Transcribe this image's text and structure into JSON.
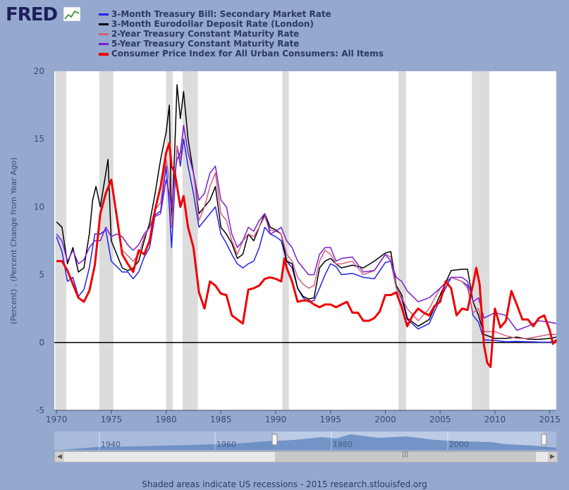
{
  "logo": {
    "text": "FRED"
  },
  "footer": {
    "text": "Shaded areas indicate US recessions - 2015 research.stlouisfed.org"
  },
  "colors": {
    "tbill": "#2222ee",
    "eurodollar": "#000000",
    "treas2": "#d06080",
    "treas5": "#7a1fd0",
    "cpi": "#ee0000",
    "recession": "#dcdcdc",
    "plotbg": "#ffffff"
  },
  "chart_data": {
    "type": "line",
    "title": "",
    "xlabel": "",
    "ylabel": "(Percent) , (Percent Change from Year Ago)",
    "xlim": [
      1969.8,
      2015.6
    ],
    "ylim": [
      -5,
      20
    ],
    "yticks": [
      -5,
      0,
      5,
      10,
      15,
      20
    ],
    "xticks": [
      1970,
      1975,
      1980,
      1985,
      1990,
      1995,
      2000,
      2005,
      2010,
      2015
    ],
    "recessions": [
      [
        1969.9,
        1970.9
      ],
      [
        1973.9,
        1975.2
      ],
      [
        1980.0,
        1980.6
      ],
      [
        1981.5,
        1982.9
      ],
      [
        1990.6,
        1991.2
      ],
      [
        2001.2,
        2001.9
      ],
      [
        2007.9,
        2009.5
      ]
    ],
    "navigator_labels": [
      "1940",
      "1960",
      "1980",
      "2000"
    ],
    "series": [
      {
        "name": "3-Month Treasury Bill: Secondary Market Rate",
        "key": "tbill",
        "x": [
          1970,
          1970.5,
          1971,
          1971.5,
          1972,
          1972.5,
          1973,
          1973.5,
          1974,
          1974.5,
          1975,
          1975.5,
          1976,
          1976.5,
          1977,
          1977.5,
          1978,
          1978.5,
          1979,
          1979.5,
          1980,
          1980.3,
          1980.5,
          1980.8,
          1981,
          1981.3,
          1981.6,
          1982,
          1982.5,
          1983,
          1983.5,
          1984,
          1984.5,
          1985,
          1985.5,
          1986,
          1986.5,
          1987,
          1987.5,
          1988,
          1988.5,
          1989,
          1989.5,
          1990,
          1990.5,
          1991,
          1991.5,
          1992,
          1992.5,
          1993,
          1993.5,
          1994,
          1994.5,
          1995,
          1995.5,
          1996,
          1997,
          1998,
          1999,
          2000,
          2000.5,
          2001,
          2001.5,
          2002,
          2003,
          2004,
          2005,
          2006,
          2007,
          2007.5,
          2008,
          2008.5,
          2009,
          2010,
          2011,
          2012,
          2013,
          2014,
          2015,
          2015.6
        ],
        "y": [
          7.8,
          6.7,
          4.5,
          4.8,
          3.4,
          3.9,
          5.5,
          8.0,
          8.0,
          8.3,
          6.0,
          5.6,
          5.2,
          5.2,
          4.7,
          5.2,
          6.3,
          7.0,
          9.4,
          9.7,
          13.0,
          10.0,
          7.0,
          11.5,
          14.5,
          13.0,
          15.0,
          13.0,
          11.0,
          8.5,
          9.0,
          9.5,
          10.0,
          8.0,
          7.3,
          6.5,
          5.8,
          5.5,
          5.8,
          6.0,
          7.0,
          8.5,
          8.0,
          7.8,
          7.5,
          6.0,
          5.5,
          4.0,
          3.3,
          3.0,
          3.1,
          4.0,
          5.0,
          5.8,
          5.6,
          5.0,
          5.1,
          4.8,
          4.7,
          5.9,
          6.0,
          4.0,
          3.2,
          1.7,
          1.0,
          1.4,
          3.2,
          4.8,
          4.5,
          4.2,
          2.0,
          1.5,
          0.2,
          0.15,
          0.05,
          0.08,
          0.05,
          0.03,
          0.02,
          0.1
        ]
      },
      {
        "name": "3-Month Eurodollar Deposit Rate (London)",
        "key": "eurodollar",
        "x": [
          1970,
          1970.5,
          1971,
          1971.5,
          1972,
          1972.5,
          1973,
          1973.3,
          1973.6,
          1974,
          1974.5,
          1974.7,
          1975,
          1975.5,
          1976,
          1976.5,
          1977,
          1977.5,
          1978,
          1978.5,
          1979,
          1979.5,
          1980,
          1980.3,
          1980.5,
          1980.8,
          1981,
          1981.3,
          1981.6,
          1982,
          1982.5,
          1983,
          1983.5,
          1984,
          1984.5,
          1985,
          1985.5,
          1986,
          1986.5,
          1987,
          1987.5,
          1988,
          1988.5,
          1989,
          1989.5,
          1990,
          1990.5,
          1991,
          1991.5,
          1992,
          1992.5,
          1993,
          1993.5,
          1994,
          1994.5,
          1995,
          1995.5,
          1996,
          1997,
          1998,
          1999,
          2000,
          2000.5,
          2001,
          2001.5,
          2002,
          2003,
          2004,
          2005,
          2006,
          2007,
          2007.5,
          2008,
          2008.5,
          2009,
          2010,
          2011,
          2012,
          2013,
          2014,
          2015,
          2015.6
        ],
        "y": [
          8.9,
          8.5,
          5.8,
          7.0,
          5.2,
          5.5,
          8.0,
          10.5,
          11.5,
          10.0,
          12.5,
          13.5,
          7.5,
          6.5,
          5.5,
          5.3,
          5.5,
          6.0,
          7.5,
          8.8,
          11.0,
          13.5,
          15.5,
          17.5,
          8.5,
          14.5,
          19.0,
          16.5,
          18.5,
          15.0,
          12.5,
          9.5,
          10.0,
          10.5,
          11.5,
          8.5,
          8.0,
          7.3,
          6.2,
          6.5,
          8.0,
          7.5,
          8.5,
          9.5,
          8.5,
          8.3,
          8.0,
          6.0,
          5.8,
          4.0,
          3.4,
          3.2,
          3.3,
          5.5,
          6.0,
          6.2,
          5.8,
          5.5,
          5.7,
          5.5,
          6.0,
          6.6,
          6.7,
          4.2,
          3.5,
          1.8,
          1.2,
          1.7,
          3.5,
          5.3,
          5.4,
          5.4,
          3.0,
          2.0,
          0.6,
          0.3,
          0.3,
          0.4,
          0.25,
          0.23,
          0.3,
          0.4
        ]
      },
      {
        "name": "2-Year Treasury Constant Maturity Rate",
        "key": "treas2",
        "x": [
          1976,
          1976.5,
          1977,
          1977.5,
          1978,
          1978.5,
          1979,
          1979.5,
          1980,
          1980.3,
          1980.5,
          1980.8,
          1981,
          1981.3,
          1981.6,
          1982,
          1982.5,
          1983,
          1983.5,
          1984,
          1984.5,
          1985,
          1985.5,
          1986,
          1986.5,
          1987,
          1987.5,
          1988,
          1988.5,
          1989,
          1989.5,
          1990,
          1990.5,
          1991,
          1991.5,
          1992,
          1992.5,
          1993,
          1993.5,
          1994,
          1994.5,
          1995,
          1995.5,
          1996,
          1997,
          1998,
          1999,
          2000,
          2000.5,
          2001,
          2001.5,
          2002,
          2003,
          2004,
          2005,
          2006,
          2007,
          2007.5,
          2008,
          2008.5,
          2009,
          2010,
          2011,
          2012,
          2013,
          2014,
          2015,
          2015.6
        ],
        "y": [
          6.8,
          6.4,
          6.0,
          6.5,
          7.8,
          8.5,
          9.8,
          10.3,
          13.5,
          12.0,
          8.5,
          12.0,
          14.5,
          13.5,
          16.0,
          14.0,
          12.5,
          9.0,
          10.0,
          11.5,
          12.5,
          9.5,
          9.0,
          7.5,
          6.5,
          7.5,
          8.0,
          7.8,
          8.5,
          9.3,
          8.3,
          8.2,
          8.0,
          6.5,
          6.0,
          4.8,
          4.3,
          4.0,
          4.2,
          6.0,
          6.8,
          6.5,
          5.8,
          5.8,
          6.0,
          5.0,
          5.3,
          6.5,
          6.3,
          4.0,
          3.3,
          2.5,
          1.6,
          2.5,
          4.0,
          4.8,
          4.5,
          4.0,
          2.2,
          2.5,
          0.8,
          0.8,
          0.5,
          0.3,
          0.3,
          0.45,
          0.6,
          0.6
        ]
      },
      {
        "name": "5-Year Treasury Constant Maturity Rate",
        "key": "treas5",
        "x": [
          1970,
          1970.5,
          1971,
          1971.5,
          1972,
          1972.5,
          1973,
          1973.5,
          1974,
          1974.5,
          1975,
          1975.5,
          1976,
          1976.5,
          1977,
          1977.5,
          1978,
          1978.5,
          1979,
          1979.5,
          1980,
          1980.3,
          1980.5,
          1980.8,
          1981,
          1981.3,
          1981.6,
          1982,
          1982.5,
          1983,
          1983.5,
          1984,
          1984.5,
          1985,
          1985.5,
          1986,
          1986.5,
          1987,
          1987.5,
          1988,
          1988.5,
          1989,
          1989.5,
          1990,
          1990.5,
          1991,
          1991.5,
          1992,
          1992.5,
          1993,
          1993.5,
          1994,
          1994.5,
          1995,
          1995.5,
          1996,
          1997,
          1998,
          1999,
          2000,
          2000.5,
          2001,
          2001.5,
          2002,
          2003,
          2004,
          2005,
          2006,
          2007,
          2007.5,
          2008,
          2008.5,
          2009,
          2010,
          2011,
          2012,
          2013,
          2014,
          2015,
          2015.6
        ],
        "y": [
          8.0,
          7.5,
          6.0,
          6.8,
          5.8,
          6.1,
          7.0,
          7.5,
          7.5,
          8.5,
          7.8,
          8.0,
          7.8,
          7.2,
          6.8,
          7.2,
          8.0,
          8.5,
          9.3,
          9.5,
          12.0,
          11.0,
          10.0,
          12.5,
          13.5,
          14.0,
          16.0,
          14.0,
          12.5,
          10.5,
          11.0,
          12.5,
          13.0,
          10.5,
          10.0,
          8.0,
          7.0,
          7.5,
          8.5,
          8.2,
          9.0,
          9.5,
          8.0,
          8.2,
          8.5,
          7.5,
          7.0,
          6.0,
          5.5,
          5.0,
          5.0,
          6.5,
          7.0,
          7.0,
          6.0,
          6.2,
          6.3,
          5.2,
          5.3,
          6.5,
          6.0,
          4.8,
          4.5,
          3.8,
          3.0,
          3.3,
          4.0,
          4.8,
          4.8,
          4.5,
          3.0,
          3.3,
          1.8,
          2.2,
          2.0,
          0.9,
          1.2,
          1.6,
          1.5,
          1.4
        ]
      },
      {
        "name": "Consumer Price Index for All Urban Consumers: All Items",
        "key": "cpi",
        "x": [
          1970,
          1970.5,
          1971,
          1971.5,
          1972,
          1972.5,
          1973,
          1973.5,
          1974,
          1974.5,
          1975,
          1975.5,
          1976,
          1976.5,
          1977,
          1977.5,
          1978,
          1978.5,
          1979,
          1979.5,
          1980,
          1980.3,
          1980.5,
          1980.8,
          1981,
          1981.3,
          1981.6,
          1982,
          1982.5,
          1983,
          1983.5,
          1984,
          1984.5,
          1985,
          1985.5,
          1986,
          1986.5,
          1987,
          1987.5,
          1988,
          1988.5,
          1989,
          1989.5,
          1990,
          1990.5,
          1990.8,
          1991,
          1991.5,
          1992,
          1992.5,
          1993,
          1993.5,
          1994,
          1994.5,
          1995,
          1995.5,
          1996,
          1996.5,
          1997,
          1997.5,
          1998,
          1998.5,
          1999,
          1999.5,
          2000,
          2000.5,
          2001,
          2001.5,
          2002,
          2002.5,
          2003,
          2003.5,
          2004,
          2004.5,
          2005,
          2005.5,
          2006,
          2006.5,
          2007,
          2007.5,
          2008,
          2008.3,
          2008.6,
          2008.9,
          2009,
          2009.3,
          2009.6,
          2010,
          2010.5,
          2011,
          2011.5,
          2012,
          2012.5,
          2013,
          2013.5,
          2014,
          2014.5,
          2015,
          2015.3,
          2015.6
        ],
        "y": [
          6.0,
          6.0,
          5.3,
          4.3,
          3.3,
          3.0,
          3.8,
          5.7,
          9.5,
          11.0,
          12.0,
          9.3,
          6.5,
          5.8,
          5.2,
          6.8,
          6.5,
          7.5,
          9.8,
          11.5,
          14.0,
          14.7,
          13.0,
          12.5,
          11.5,
          10.0,
          10.8,
          8.5,
          7.0,
          3.7,
          2.5,
          4.5,
          4.2,
          3.6,
          3.5,
          2.0,
          1.7,
          1.4,
          3.9,
          4.0,
          4.2,
          4.7,
          4.8,
          4.7,
          4.5,
          6.2,
          5.5,
          4.5,
          3.0,
          3.1,
          3.1,
          2.8,
          2.6,
          2.8,
          2.8,
          2.6,
          2.8,
          3.0,
          2.2,
          2.2,
          1.6,
          1.6,
          1.8,
          2.3,
          3.5,
          3.5,
          3.7,
          2.6,
          1.2,
          2.0,
          2.5,
          2.2,
          2.0,
          2.7,
          3.0,
          4.5,
          4.0,
          2.0,
          2.5,
          2.4,
          4.3,
          5.5,
          4.3,
          1.0,
          -0.2,
          -1.5,
          -1.8,
          2.5,
          1.1,
          1.6,
          3.8,
          2.8,
          1.7,
          1.7,
          1.2,
          1.8,
          2.0,
          0.9,
          -0.1,
          0.2
        ]
      }
    ]
  }
}
